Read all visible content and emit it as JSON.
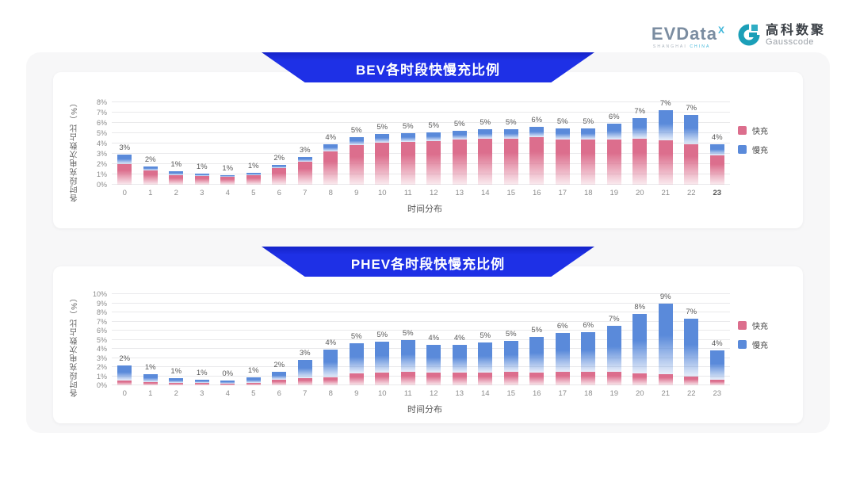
{
  "logo": {
    "brand": "EVData",
    "brand_sup": "X",
    "brand_sub_left": "SHANGHAI",
    "brand_sub_right": "CHINA",
    "brand_color": "#7b8da1",
    "accent_teal": "#3fb6d9",
    "partner_name": "高科数聚",
    "partner_sub": "Gausscode",
    "partner_mark_color": "#1b9fb8"
  },
  "banner_color": "#1e30e6",
  "chart_data": [
    {
      "type": "bar",
      "stacked": true,
      "title": "BEV各时段快慢充比例",
      "xlabel": "时间分布",
      "ylabel": "各时段充电次数占比（%）",
      "ylim": [
        0,
        8
      ],
      "ytick_step": 1,
      "grid": true,
      "legend_position": "right",
      "emphasized_xtick": "23",
      "categories": [
        "0",
        "1",
        "2",
        "3",
        "4",
        "5",
        "6",
        "7",
        "8",
        "9",
        "10",
        "11",
        "12",
        "13",
        "14",
        "15",
        "16",
        "17",
        "18",
        "19",
        "20",
        "21",
        "22",
        "23"
      ],
      "series": [
        {
          "name": "快充",
          "color": "#dc6e8d",
          "values": [
            2.0,
            1.4,
            0.9,
            0.85,
            0.8,
            0.9,
            1.6,
            2.2,
            3.2,
            3.85,
            4.05,
            4.15,
            4.25,
            4.35,
            4.5,
            4.5,
            4.6,
            4.35,
            4.35,
            4.4,
            4.5,
            4.3,
            3.95,
            2.85
          ]
        },
        {
          "name": "慢充",
          "color": "#5a8ada",
          "values": [
            0.9,
            0.4,
            0.4,
            0.25,
            0.15,
            0.25,
            0.3,
            0.5,
            0.7,
            0.8,
            0.85,
            0.85,
            0.85,
            0.85,
            0.9,
            0.9,
            1.0,
            1.1,
            1.1,
            1.5,
            2.0,
            2.9,
            2.8,
            1.1
          ]
        }
      ],
      "total_labels": [
        "3%",
        "2%",
        "1%",
        "1%",
        "1%",
        "1%",
        "2%",
        "3%",
        "4%",
        "5%",
        "5%",
        "5%",
        "5%",
        "5%",
        "5%",
        "5%",
        "6%",
        "5%",
        "5%",
        "6%",
        "7%",
        "7%",
        "7%",
        "4%"
      ]
    },
    {
      "type": "bar",
      "stacked": true,
      "title": "PHEV各时段快慢充比例",
      "xlabel": "时间分布",
      "ylabel": "各时段充电次数占比（%）",
      "ylim": [
        0,
        10
      ],
      "ytick_step": 1,
      "grid": true,
      "legend_position": "right",
      "emphasized_xtick": "",
      "categories": [
        "0",
        "1",
        "2",
        "3",
        "4",
        "5",
        "6",
        "7",
        "8",
        "9",
        "10",
        "11",
        "12",
        "13",
        "14",
        "15",
        "16",
        "17",
        "18",
        "19",
        "20",
        "21",
        "22",
        "23"
      ],
      "series": [
        {
          "name": "快充",
          "color": "#dc6e8d",
          "values": [
            0.5,
            0.35,
            0.3,
            0.25,
            0.2,
            0.3,
            0.6,
            0.8,
            0.9,
            1.3,
            1.4,
            1.5,
            1.4,
            1.4,
            1.4,
            1.5,
            1.4,
            1.5,
            1.5,
            1.45,
            1.3,
            1.2,
            1.0,
            0.6
          ]
        },
        {
          "name": "慢充",
          "color": "#5a8ada",
          "values": [
            1.7,
            0.85,
            0.5,
            0.35,
            0.28,
            0.55,
            0.9,
            1.95,
            3.0,
            3.3,
            3.4,
            3.5,
            3.0,
            3.05,
            3.3,
            3.4,
            3.9,
            4.2,
            4.3,
            5.1,
            6.5,
            7.8,
            6.3,
            3.2
          ]
        }
      ],
      "total_labels": [
        "2%",
        "1%",
        "1%",
        "1%",
        "0%",
        "1%",
        "2%",
        "3%",
        "4%",
        "5%",
        "5%",
        "5%",
        "4%",
        "4%",
        "5%",
        "5%",
        "5%",
        "6%",
        "6%",
        "7%",
        "8%",
        "9%",
        "7%",
        "4%"
      ]
    }
  ]
}
